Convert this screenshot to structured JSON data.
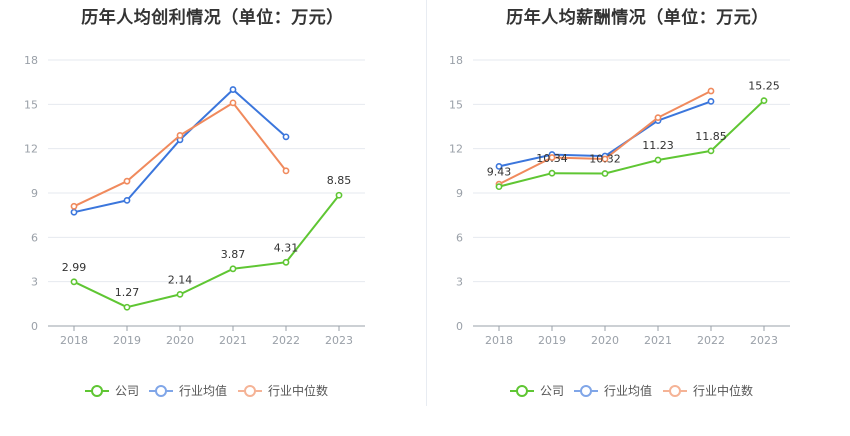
{
  "chart_data": [
    {
      "type": "line",
      "title": "历年人均创利情况（单位：万元）",
      "categories": [
        "2018",
        "2019",
        "2020",
        "2021",
        "2022",
        "2023"
      ],
      "ylim": [
        0,
        18
      ],
      "yticks": [
        0,
        3,
        6,
        9,
        12,
        15,
        18
      ],
      "grid": true,
      "legend_position": "bottom",
      "series": [
        {
          "name": "公司",
          "color": "#5fc633",
          "values": [
            2.99,
            1.27,
            2.14,
            3.87,
            4.31,
            8.85
          ],
          "labels": [
            "2.99",
            "1.27",
            "2.14",
            "3.87",
            "4.31",
            "8.85"
          ]
        },
        {
          "name": "行业均值",
          "color": "#3b76dc",
          "values": [
            7.7,
            8.5,
            12.6,
            16.0,
            12.8,
            null
          ]
        },
        {
          "name": "行业中位数",
          "color": "#f08a5d",
          "values": [
            8.1,
            9.8,
            12.9,
            15.1,
            10.5,
            null
          ]
        }
      ]
    },
    {
      "type": "line",
      "title": "历年人均薪酬情况（单位：万元）",
      "categories": [
        "2018",
        "2019",
        "2020",
        "2021",
        "2022",
        "2023"
      ],
      "ylim": [
        0,
        18
      ],
      "yticks": [
        0,
        3,
        6,
        9,
        12,
        15,
        18
      ],
      "grid": true,
      "legend_position": "bottom",
      "series": [
        {
          "name": "公司",
          "color": "#5fc633",
          "values": [
            9.43,
            10.34,
            10.32,
            11.23,
            11.85,
            15.25
          ],
          "labels": [
            "9.43",
            "10.34",
            "10.32",
            "11.23",
            "11.85",
            "15.25"
          ]
        },
        {
          "name": "行业均值",
          "color": "#3b76dc",
          "values": [
            10.8,
            11.6,
            11.5,
            13.9,
            15.2,
            null
          ]
        },
        {
          "name": "行业中位数",
          "color": "#f08a5d",
          "values": [
            9.6,
            11.4,
            11.3,
            14.1,
            15.9,
            null
          ]
        }
      ]
    }
  ]
}
